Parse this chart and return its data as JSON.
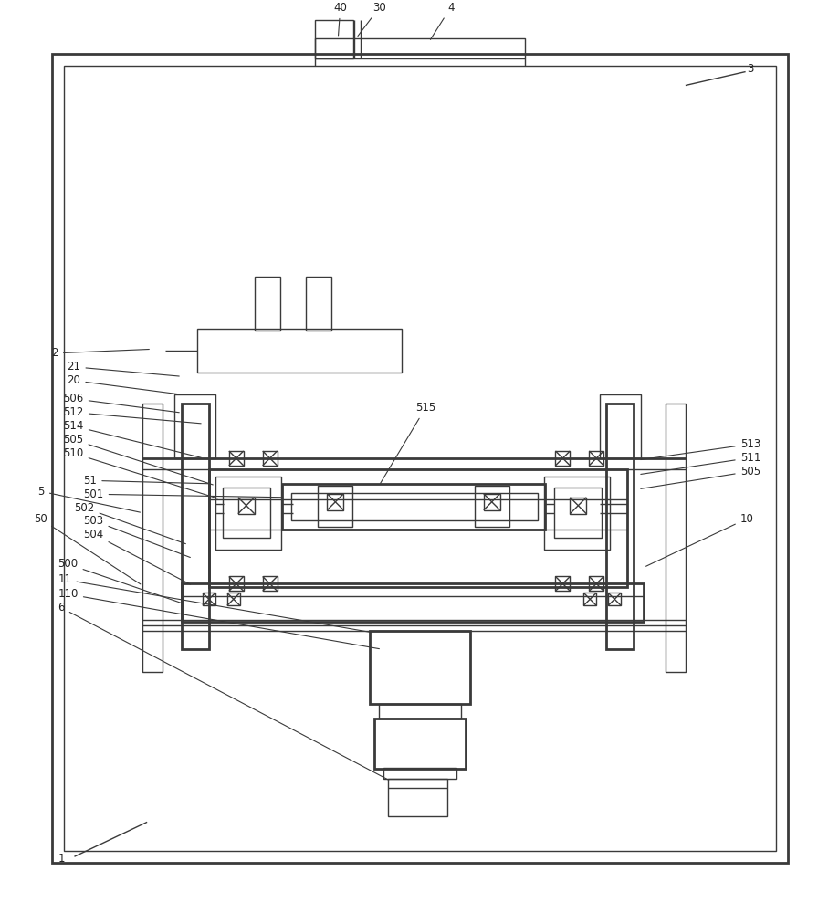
{
  "bg_color": "#ffffff",
  "line_color": "#3a3a3a",
  "lw": 1.0,
  "tlw": 2.0,
  "fs": 8.5
}
